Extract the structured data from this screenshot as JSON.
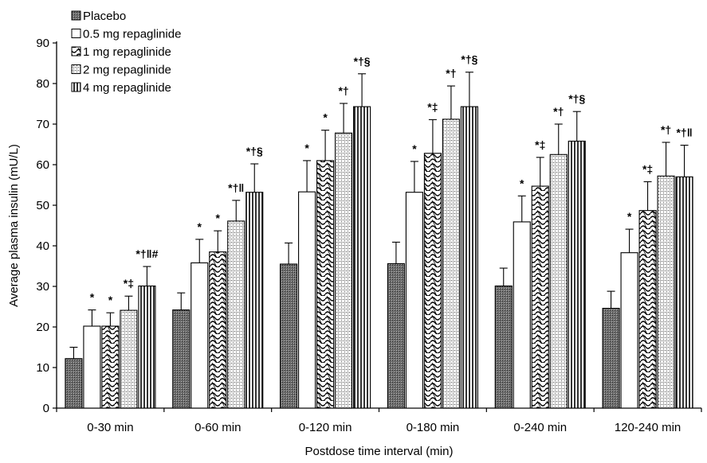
{
  "chart_data": {
    "type": "bar",
    "xlabel": "Postdose time interval (min)",
    "ylabel": "Average plasma insulin (mU/L)",
    "ylim": [
      0,
      90
    ],
    "yticks": [
      0,
      10,
      20,
      30,
      40,
      50,
      60,
      70,
      80,
      90
    ],
    "grid": false,
    "legend_position": "top-left",
    "categories": [
      "0-30 min",
      "0-60 min",
      "0-120 min",
      "0-180 min",
      "0-240 min",
      "120-240 min"
    ],
    "series": [
      {
        "name": "Placebo",
        "values": [
          12.2,
          24.2,
          35.5,
          35.6,
          30.1,
          24.6
        ],
        "errors": [
          2.8,
          4.2,
          5.2,
          5.3,
          4.4,
          4.2
        ],
        "annotations": [
          "",
          "",
          "",
          "",
          "",
          ""
        ]
      },
      {
        "name": "0.5 mg repaglinide",
        "values": [
          20.2,
          35.8,
          53.3,
          53.2,
          45.9,
          38.3
        ],
        "errors": [
          4.0,
          5.8,
          7.7,
          7.6,
          6.4,
          5.8
        ],
        "annotations": [
          "*",
          "*",
          "*",
          "*",
          "*",
          "*"
        ]
      },
      {
        "name": "1 mg repaglinide",
        "values": [
          20.2,
          38.5,
          61.0,
          62.8,
          54.7,
          48.7
        ],
        "errors": [
          3.3,
          5.2,
          7.5,
          8.3,
          7.1,
          7.1
        ],
        "annotations": [
          "*",
          "*",
          "*",
          "*‡",
          "*‡",
          "*‡"
        ]
      },
      {
        "name": "2 mg repaglinide",
        "values": [
          24.1,
          46.1,
          67.8,
          71.2,
          62.5,
          57.2
        ],
        "errors": [
          3.5,
          5.1,
          7.3,
          8.2,
          7.5,
          8.3
        ],
        "annotations": [
          "*‡",
          "*†‖",
          "*†",
          "*†",
          "*†",
          "*†"
        ]
      },
      {
        "name": "4 mg repaglinide",
        "values": [
          30.1,
          53.2,
          74.3,
          74.3,
          65.8,
          57.0
        ],
        "errors": [
          4.8,
          7.0,
          8.1,
          8.5,
          7.3,
          7.8
        ],
        "annotations": [
          "*†‖#",
          "*†§",
          "*†§",
          "*†§",
          "*†§",
          "*†‖"
        ]
      }
    ]
  }
}
